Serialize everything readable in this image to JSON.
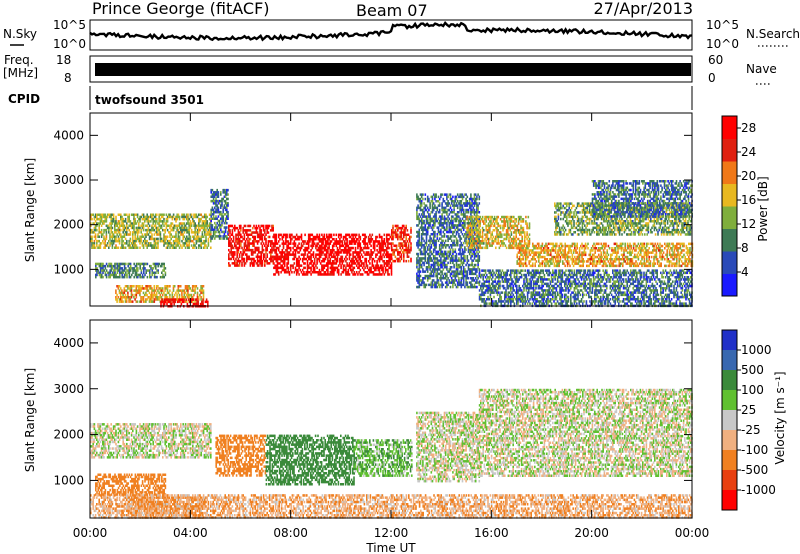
{
  "header": {
    "station": "Prince George (fitACF)",
    "beam": "Beam 07",
    "date": "27/Apr/2013"
  },
  "noise_panel": {
    "left_label": "N.Sky",
    "right_label": "N.Search",
    "left_ticks": [
      "10^5",
      "10^0"
    ],
    "right_ticks": [
      "10^5",
      "10^0"
    ]
  },
  "freq_panel": {
    "left_label_line1": "Freq.",
    "left_label_line2": "[MHz]",
    "right_label": "Nave",
    "left_ticks": [
      "18",
      "8"
    ],
    "right_ticks": [
      "60",
      "0"
    ]
  },
  "cpid_panel": {
    "label": "CPID",
    "program": "twofsound 3501"
  },
  "power_panel": {
    "ylabel": "Slant Range [km]",
    "yticks": [
      "4000",
      "3000",
      "2000",
      "1000"
    ],
    "colorbar_label": "Power [dB]",
    "colorbar_ticks": [
      "28",
      "24",
      "20",
      "16",
      "12",
      "8",
      "4"
    ],
    "colors": [
      "#1a1aff",
      "#2a4ab8",
      "#3e7a55",
      "#7fae3c",
      "#e8b820",
      "#f07818",
      "#e02010",
      "#ff0000"
    ]
  },
  "velocity_panel": {
    "ylabel": "Slant Range [km]",
    "yticks": [
      "4000",
      "3000",
      "2000",
      "1000"
    ],
    "colorbar_label": "Velocity [m s⁻¹]",
    "colorbar_ticks": [
      "1000",
      "500",
      "100",
      "25",
      "-25",
      "-100",
      "-500",
      "-1000"
    ],
    "colors": [
      "#2030c8",
      "#3868b0",
      "#3a8a3a",
      "#60c030",
      "#c8c8c8",
      "#f0b080",
      "#f08020",
      "#e84010",
      "#ff0000"
    ]
  },
  "x_axis": {
    "ticks": [
      "00:00",
      "04:00",
      "08:00",
      "12:00",
      "16:00",
      "20:00",
      "00:00"
    ],
    "label": "Time UT"
  },
  "chart_data": {
    "type": "heatmap",
    "x_unit": "hours UT",
    "xlim": [
      0,
      24
    ],
    "ylim": [
      180,
      4500
    ],
    "power_colorbar_range_dB": [
      0,
      30
    ],
    "velocity_colorbar_range_ms": [
      -1000,
      1000
    ],
    "power_regions": [
      {
        "t0": 0.0,
        "t1": 4.8,
        "r0": 1500,
        "r1": 2250,
        "dB": 14
      },
      {
        "t0": 0.2,
        "t1": 3.0,
        "r0": 850,
        "r1": 1150,
        "dB": 10
      },
      {
        "t0": 1.0,
        "t1": 4.5,
        "r0": 300,
        "r1": 650,
        "dB": 18
      },
      {
        "t0": 2.8,
        "t1": 4.7,
        "r0": 200,
        "r1": 350,
        "dB": 28
      },
      {
        "t0": 4.8,
        "t1": 5.5,
        "r0": 1700,
        "r1": 2800,
        "dB": 8
      },
      {
        "t0": 5.5,
        "t1": 7.3,
        "r0": 1100,
        "r1": 2000,
        "dB": 27
      },
      {
        "t0": 7.3,
        "t1": 12.0,
        "r0": 900,
        "r1": 1800,
        "dB": 29
      },
      {
        "t0": 12.0,
        "t1": 12.8,
        "r0": 1200,
        "r1": 2000,
        "dB": 24
      },
      {
        "t0": 13.0,
        "t1": 15.5,
        "r0": 600,
        "r1": 2700,
        "dB": 8
      },
      {
        "t0": 15.0,
        "t1": 17.5,
        "r0": 1500,
        "r1": 2200,
        "dB": 16
      },
      {
        "t0": 17.0,
        "t1": 24.0,
        "r0": 1100,
        "r1": 1600,
        "dB": 18
      },
      {
        "t0": 18.5,
        "t1": 24.0,
        "r0": 1800,
        "r1": 2500,
        "dB": 12
      },
      {
        "t0": 20.0,
        "t1": 24.0,
        "r0": 2200,
        "r1": 3000,
        "dB": 8
      },
      {
        "t0": 15.5,
        "t1": 24.0,
        "r0": 200,
        "r1": 1000,
        "dB": 8
      }
    ],
    "velocity_regions": [
      {
        "t0": 0.0,
        "t1": 4.8,
        "r0": 1500,
        "r1": 2250,
        "v": 0
      },
      {
        "t0": 0.2,
        "t1": 3.0,
        "r0": 700,
        "r1": 1150,
        "v": -400
      },
      {
        "t0": 1.5,
        "t1": 4.5,
        "r0": 200,
        "r1": 650,
        "v": -300
      },
      {
        "t0": 5.0,
        "t1": 7.0,
        "r0": 1100,
        "r1": 2000,
        "v": -300
      },
      {
        "t0": 7.0,
        "t1": 10.5,
        "r0": 900,
        "r1": 2000,
        "v": 200
      },
      {
        "t0": 10.5,
        "t1": 12.8,
        "r0": 1100,
        "r1": 1900,
        "v": 80
      },
      {
        "t0": 13.0,
        "t1": 15.5,
        "r0": 1000,
        "r1": 2500,
        "v": 0
      },
      {
        "t0": 15.5,
        "t1": 24.0,
        "r0": 1100,
        "r1": 3000,
        "v": 0
      },
      {
        "t0": 0.0,
        "t1": 24.0,
        "r0": 200,
        "r1": 700,
        "v": -80
      }
    ]
  }
}
